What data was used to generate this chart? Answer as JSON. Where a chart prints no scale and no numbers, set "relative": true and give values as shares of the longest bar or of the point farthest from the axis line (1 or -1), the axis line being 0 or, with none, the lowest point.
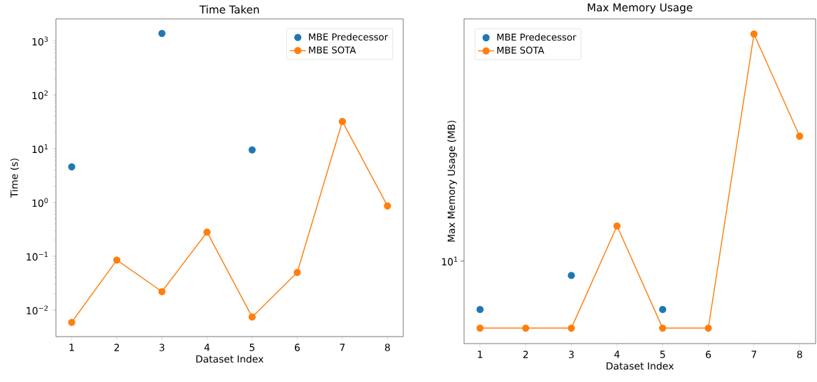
{
  "chart_data": [
    {
      "type": "line",
      "title": "Time Taken",
      "xlabel": "Dataset Index",
      "ylabel": "Time (s)",
      "categories": [
        "1",
        "2",
        "3",
        "4",
        "5",
        "6",
        "7",
        "8"
      ],
      "series": [
        {
          "name": "MBE Predecessor",
          "type": "scatter",
          "color": "#1f77b4",
          "values": [
            4.6,
            null,
            1390,
            null,
            9.5,
            null,
            null,
            null
          ]
        },
        {
          "name": "MBE SOTA",
          "color": "#ff7f0e",
          "values": [
            0.0059,
            0.085,
            0.022,
            0.28,
            0.0074,
            0.05,
            32,
            0.86
          ]
        }
      ],
      "log": true,
      "ylim": [
        0.0032,
        2590
      ],
      "yticks": [
        {
          "value": 0.01,
          "label": "10$^{−2}$"
        },
        {
          "value": 0.1,
          "label": "10$^{−1}$"
        },
        {
          "value": 1,
          "label": "10$^{0}$"
        },
        {
          "value": 10,
          "label": "10$^{1}$"
        },
        {
          "value": 100,
          "label": "10$^{2}$"
        },
        {
          "value": 1000,
          "label": "10$^{3}$"
        }
      ],
      "legend": "top right",
      "marker": "circle"
    },
    {
      "type": "line",
      "title": "Max Memory Usage",
      "xlabel": "Dataset Index",
      "ylabel": "Max Memory Usage (MB)",
      "categories": [
        "1",
        "2",
        "3",
        "4",
        "5",
        "6",
        "7",
        "8"
      ],
      "series": [
        {
          "name": "MBE Predecessor",
          "type": "scatter",
          "color": "#1f77b4",
          "values": [
            0.11,
            null,
            0.22,
            null,
            0.11,
            null,
            null,
            null
          ]
        },
        {
          "name": "MBE SOTA",
          "color": "#ff7f0e",
          "values": [
            0.05,
            0.05,
            0.05,
            0.38,
            0.05,
            0.05,
            1,
            0.67
          ]
        }
      ],
      "relative": true,
      "annotations": [
        "10$^{1}$"
      ],
      "legend": "top left",
      "marker": "circle"
    }
  ]
}
